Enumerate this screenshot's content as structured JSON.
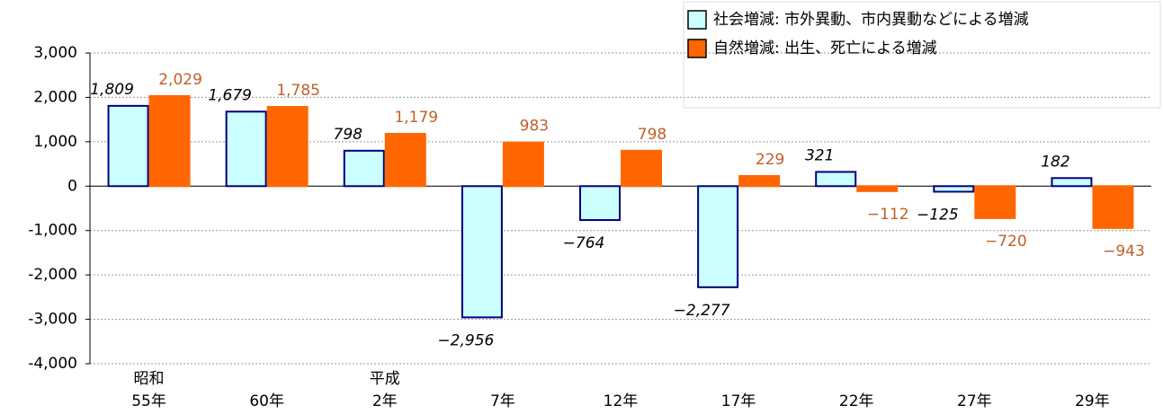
{
  "chart_data": {
    "type": "bar",
    "categories": [
      [
        "昭和",
        "55年"
      ],
      [
        "60年"
      ],
      [
        "平成",
        "2年"
      ],
      [
        "7年"
      ],
      [
        "12年"
      ],
      [
        "17年"
      ],
      [
        "22年"
      ],
      [
        "27年"
      ],
      [
        "29年"
      ]
    ],
    "series": [
      {
        "name": "社会増減: 市外異動、市内異動などによる増減",
        "color": "#ccffff",
        "edge": "#000080",
        "values": [
          1809,
          1679,
          798,
          -2956,
          -764,
          -2277,
          321,
          -125,
          182
        ],
        "value_labels": [
          "1,809",
          "1,679",
          "798",
          "−2,956",
          "−764",
          "−2,277",
          "321",
          "−125",
          "182"
        ]
      },
      {
        "name": "自然増減: 出生、死亡による増減",
        "color": "#ff6600",
        "edge": "#ff6600",
        "values": [
          2029,
          1785,
          1179,
          983,
          798,
          229,
          -112,
          -720,
          -943
        ],
        "value_labels": [
          "2,029",
          "1,785",
          "1,179",
          "983",
          "798",
          "229",
          "−112",
          "−720",
          "−943"
        ]
      }
    ],
    "ylim": [
      -4000,
      3000
    ],
    "yticks": [
      {
        "value": -4000,
        "label": "-4,000"
      },
      {
        "value": -3000,
        "label": "-3,000"
      },
      {
        "value": -2000,
        "label": "-2,000"
      },
      {
        "value": -1000,
        "label": "-1,000"
      },
      0,
      {
        "value": 1000,
        "label": "1,000"
      },
      {
        "value": 2000,
        "label": "2,000"
      },
      {
        "value": 3000,
        "label": "3,000"
      }
    ],
    "grid": true
  }
}
